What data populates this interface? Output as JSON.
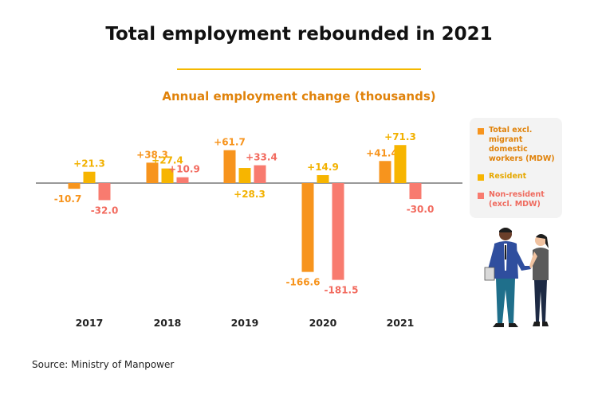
{
  "title": "Total employment rebounded in 2021",
  "source": "Source: Ministry of Manpower",
  "colors": {
    "total": "#f7941d",
    "resident": "#f7b500",
    "non_resident": "#f87b6f",
    "title_rule": "#f5b800"
  },
  "chart_data": {
    "type": "bar",
    "title": "Annual employment change (thousands)",
    "categories": [
      "2017",
      "2018",
      "2019",
      "2020",
      "2021"
    ],
    "series": [
      {
        "name": "Total excl. migrant domestic workers (MDW)",
        "values": [
          -10.7,
          38.3,
          61.7,
          -166.6,
          41.4
        ],
        "labels": [
          "-10.7",
          "+38.3",
          "+61.7",
          "-166.6",
          "+41.4"
        ]
      },
      {
        "name": "Resident",
        "values": [
          21.3,
          27.4,
          28.3,
          14.9,
          71.3
        ],
        "labels": [
          "+21.3",
          "+27.4",
          "+28.3",
          "+14.9",
          "+71.3"
        ]
      },
      {
        "name": "Non-resident (excl. MDW)",
        "values": [
          -32.0,
          10.9,
          33.4,
          -181.5,
          -30.0
        ],
        "labels": [
          "-32.0",
          "+10.9",
          "+33.4",
          "-181.5",
          "-30.0"
        ]
      }
    ],
    "legend_position": "right",
    "grid": false
  }
}
